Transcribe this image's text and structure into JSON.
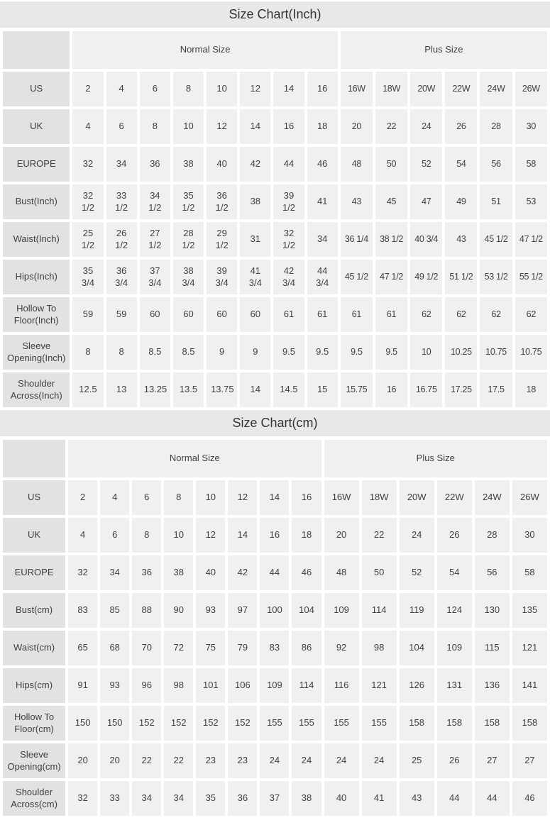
{
  "colors": {
    "title_bar_bg": "#e8e8e8",
    "label_cell_bg": "#e2e2e2",
    "data_cell_bg": "#f0f0f0",
    "text": "#404040"
  },
  "chart_data": [
    {
      "type": "table",
      "title": "Size Chart(Inch)",
      "column_groups": [
        {
          "label": "Normal Size",
          "span": 8
        },
        {
          "label": "Plus Size",
          "span": 6
        }
      ],
      "rows": [
        {
          "label": "US",
          "values": [
            "2",
            "4",
            "6",
            "8",
            "10",
            "12",
            "14",
            "16",
            "16W",
            "18W",
            "20W",
            "22W",
            "24W",
            "26W"
          ]
        },
        {
          "label": "UK",
          "values": [
            "4",
            "6",
            "8",
            "10",
            "12",
            "14",
            "16",
            "18",
            "20",
            "22",
            "24",
            "26",
            "28",
            "30"
          ]
        },
        {
          "label": "EUROPE",
          "values": [
            "32",
            "34",
            "36",
            "38",
            "40",
            "42",
            "44",
            "46",
            "48",
            "50",
            "52",
            "54",
            "56",
            "58"
          ]
        },
        {
          "label": "Bust(Inch)",
          "values": [
            "32 1/2",
            "33 1/2",
            "34 1/2",
            "35 1/2",
            "36 1/2",
            "38",
            "39 1/2",
            "41",
            "43",
            "45",
            "47",
            "49",
            "51",
            "53"
          ]
        },
        {
          "label": "Waist(Inch)",
          "values": [
            "25 1/2",
            "26 1/2",
            "27 1/2",
            "28 1/2",
            "29 1/2",
            "31",
            "32 1/2",
            "34",
            "36 1/4",
            "38 1/2",
            "40 3/4",
            "43",
            "45 1/2",
            "47 1/2"
          ]
        },
        {
          "label": "Hips(Inch)",
          "values": [
            "35 3/4",
            "36 3/4",
            "37 3/4",
            "38 3/4",
            "39 3/4",
            "41 3/4",
            "42 3/4",
            "44 3/4",
            "45 1/2",
            "47 1/2",
            "49 1/2",
            "51 1/2",
            "53 1/2",
            "55 1/2"
          ]
        },
        {
          "label": "Hollow To Floor(Inch)",
          "values": [
            "59",
            "59",
            "60",
            "60",
            "60",
            "60",
            "61",
            "61",
            "61",
            "61",
            "62",
            "62",
            "62",
            "62"
          ]
        },
        {
          "label": "Sleeve Opening(Inch)",
          "values": [
            "8",
            "8",
            "8.5",
            "8.5",
            "9",
            "9",
            "9.5",
            "9.5",
            "9.5",
            "9.5",
            "10",
            "10.25",
            "10.75",
            "10.75"
          ]
        },
        {
          "label": "Shoulder Across(Inch)",
          "values": [
            "12.5",
            "13",
            "13.25",
            "13.5",
            "13.75",
            "14",
            "14.5",
            "15",
            "15.75",
            "16",
            "16.75",
            "17.25",
            "17.5",
            "18"
          ]
        }
      ]
    },
    {
      "type": "table",
      "title": "Size Chart(cm)",
      "column_groups": [
        {
          "label": "Normal Size",
          "span": 8
        },
        {
          "label": "Plus Size",
          "span": 6
        }
      ],
      "rows": [
        {
          "label": "US",
          "values": [
            "2",
            "4",
            "6",
            "8",
            "10",
            "12",
            "14",
            "16",
            "16W",
            "18W",
            "20W",
            "22W",
            "24W",
            "26W"
          ]
        },
        {
          "label": "UK",
          "values": [
            "4",
            "6",
            "8",
            "10",
            "12",
            "14",
            "16",
            "18",
            "20",
            "22",
            "24",
            "26",
            "28",
            "30"
          ]
        },
        {
          "label": "EUROPE",
          "values": [
            "32",
            "34",
            "36",
            "38",
            "40",
            "42",
            "44",
            "46",
            "48",
            "50",
            "52",
            "54",
            "56",
            "58"
          ]
        },
        {
          "label": "Bust(cm)",
          "values": [
            "83",
            "85",
            "88",
            "90",
            "93",
            "97",
            "100",
            "104",
            "109",
            "114",
            "119",
            "124",
            "130",
            "135"
          ]
        },
        {
          "label": "Waist(cm)",
          "values": [
            "65",
            "68",
            "70",
            "72",
            "75",
            "79",
            "83",
            "86",
            "92",
            "98",
            "104",
            "109",
            "115",
            "121"
          ]
        },
        {
          "label": "Hips(cm)",
          "values": [
            "91",
            "93",
            "96",
            "98",
            "101",
            "106",
            "109",
            "114",
            "116",
            "121",
            "126",
            "131",
            "136",
            "141"
          ]
        },
        {
          "label": "Hollow To Floor(cm)",
          "values": [
            "150",
            "150",
            "152",
            "152",
            "152",
            "152",
            "155",
            "155",
            "155",
            "155",
            "158",
            "158",
            "158",
            "158"
          ]
        },
        {
          "label": "Sleeve Opening(cm)",
          "values": [
            "20",
            "20",
            "22",
            "22",
            "23",
            "23",
            "24",
            "24",
            "24",
            "24",
            "25",
            "26",
            "27",
            "27"
          ]
        },
        {
          "label": "Shoulder Across(cm)",
          "values": [
            "32",
            "33",
            "34",
            "34",
            "35",
            "36",
            "37",
            "38",
            "40",
            "41",
            "43",
            "44",
            "44",
            "46"
          ]
        }
      ]
    }
  ]
}
